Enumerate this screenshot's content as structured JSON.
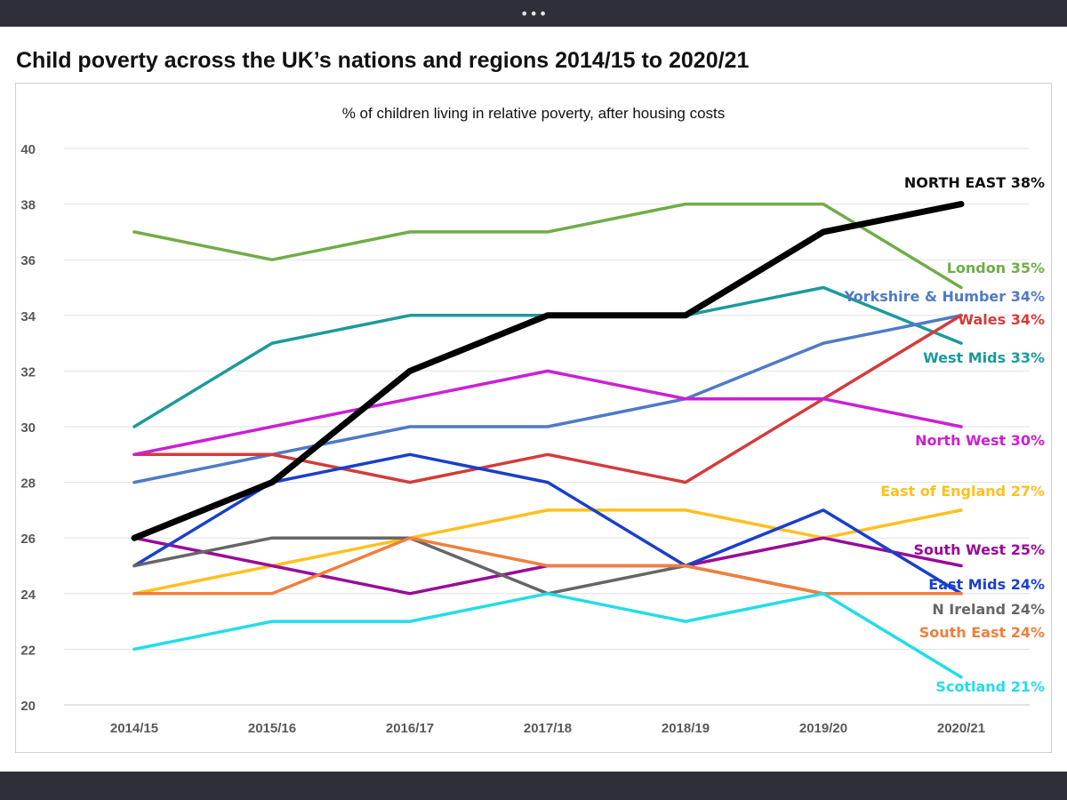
{
  "window": {
    "menu_dots": "•••"
  },
  "page": {
    "title": "Child poverty across the UK’s nations and regions 2014/15 to 2020/21"
  },
  "chart_data": {
    "type": "line",
    "title": "",
    "subtitle": "% of children living in relative poverty, after housing costs",
    "xlabel": "",
    "ylabel": "",
    "ylim": [
      20,
      40
    ],
    "yticks": [
      20,
      22,
      24,
      26,
      28,
      30,
      32,
      34,
      36,
      38,
      40
    ],
    "grid": true,
    "legend": "direct labels at line ends (right)",
    "categories": [
      "2014/15",
      "2015/16",
      "2016/17",
      "2017/18",
      "2018/19",
      "2019/20",
      "2020/21"
    ],
    "series": [
      {
        "name": "London",
        "label": "London 35%",
        "color": "#70ad47",
        "values": [
          37,
          36,
          37,
          37,
          38,
          38,
          35
        ]
      },
      {
        "name": "West Mids",
        "label": "West Mids 33%",
        "color": "#1c9a9a",
        "values": [
          30,
          33,
          34,
          34,
          34,
          35,
          33
        ]
      },
      {
        "name": "Yorkshire & Humber",
        "label": "Yorkshire & Humber 34%",
        "color": "#4f7ac7",
        "values": [
          28,
          29,
          30,
          30,
          31,
          33,
          34
        ]
      },
      {
        "name": "Wales",
        "label": "Wales 34%",
        "color": "#d43b3b",
        "values": [
          29,
          29,
          28,
          29,
          28,
          31,
          34
        ]
      },
      {
        "name": "North West",
        "label": "North West 30%",
        "color": "#cc1fd6",
        "values": [
          29,
          30,
          31,
          32,
          31,
          31,
          30
        ]
      },
      {
        "name": "East of England",
        "label": "East of England 27%",
        "color": "#ffc01f",
        "values": [
          24,
          25,
          26,
          27,
          27,
          26,
          27
        ]
      },
      {
        "name": "South West",
        "label": "South West 25%",
        "color": "#990a99",
        "values": [
          26,
          25,
          24,
          25,
          25,
          26,
          25
        ]
      },
      {
        "name": "East Mids",
        "label": "East Mids 24%",
        "color": "#1a3fcc",
        "values": [
          25,
          28,
          29,
          28,
          25,
          27,
          24
        ]
      },
      {
        "name": "N Ireland",
        "label": "N Ireland 24%",
        "color": "#666666",
        "values": [
          25,
          26,
          26,
          24,
          25,
          24,
          24
        ]
      },
      {
        "name": "South East",
        "label": "South East 24%",
        "color": "#f07f3c",
        "values": [
          24,
          24,
          26,
          25,
          25,
          24,
          24
        ]
      },
      {
        "name": "Scotland",
        "label": "Scotland 21%",
        "color": "#22dde8",
        "values": [
          22,
          23,
          23,
          24,
          23,
          24,
          21
        ]
      },
      {
        "name": "NORTH EAST",
        "label": "NORTH EAST 38%",
        "color": "#000000",
        "values": [
          26,
          28,
          32,
          34,
          34,
          37,
          38
        ]
      }
    ]
  }
}
